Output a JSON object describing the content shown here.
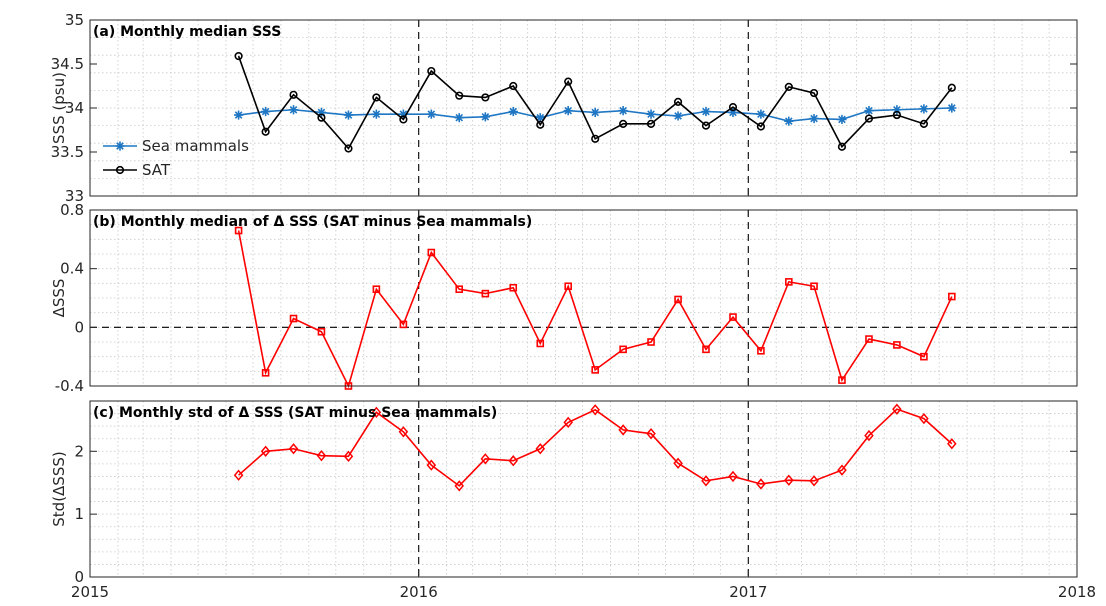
{
  "chart_data": [
    {
      "type": "line",
      "title": "(a) Monthly median SSS",
      "ylabel": "SSS (psu)",
      "ylim": [
        33,
        35
      ],
      "yticks": [
        33,
        33.5,
        34,
        34.5,
        35
      ],
      "ytick_labels": [
        "33",
        "33.5",
        "34",
        "34.5",
        "35"
      ],
      "xlim": [
        "2015-01-01",
        "2018-01-01"
      ],
      "grid": true,
      "legend": "left",
      "x": [
        "2015-06",
        "2015-07",
        "2015-08",
        "2015-09",
        "2015-10",
        "2015-11",
        "2015-12",
        "2016-01",
        "2016-02",
        "2016-03",
        "2016-04",
        "2016-05",
        "2016-06",
        "2016-07",
        "2016-08",
        "2016-09",
        "2016-10",
        "2016-11",
        "2016-12",
        "2017-01",
        "2017-02",
        "2017-03",
        "2017-04",
        "2017-05",
        "2017-06",
        "2017-07",
        "2017-08"
      ],
      "series": [
        {
          "name": "Sea mammals",
          "color": "#1f77c4",
          "marker": "star",
          "values": [
            33.92,
            33.96,
            33.98,
            33.95,
            33.92,
            33.93,
            33.93,
            33.93,
            33.89,
            33.9,
            33.96,
            33.89,
            33.97,
            33.95,
            33.97,
            33.93,
            33.91,
            33.96,
            33.95,
            33.93,
            33.85,
            33.88,
            33.87,
            33.97,
            33.98,
            33.99,
            34.0
          ]
        },
        {
          "name": "SAT",
          "color": "#000000",
          "marker": "circle",
          "values": [
            34.59,
            33.73,
            34.15,
            33.89,
            33.54,
            34.12,
            33.87,
            34.42,
            34.14,
            34.12,
            34.25,
            33.81,
            34.3,
            33.65,
            33.82,
            33.82,
            34.07,
            33.8,
            34.01,
            33.79,
            34.24,
            34.17,
            33.56,
            33.88,
            33.92,
            33.82,
            34.23
          ]
        }
      ]
    },
    {
      "type": "line",
      "title": "(b) Monthly median of Δ SSS (SAT minus Sea mammals)",
      "ylabel": "ΔSSS",
      "ylim": [
        -0.4,
        0.8
      ],
      "yticks": [
        -0.4,
        0,
        0.4,
        0.8
      ],
      "ytick_labels": [
        "-0.4",
        "0",
        "0.4",
        "0.8"
      ],
      "xlim": [
        "2015-01-01",
        "2018-01-01"
      ],
      "grid": true,
      "zero_line": true,
      "x": [
        "2015-06",
        "2015-07",
        "2015-08",
        "2015-09",
        "2015-10",
        "2015-11",
        "2015-12",
        "2016-01",
        "2016-02",
        "2016-03",
        "2016-04",
        "2016-05",
        "2016-06",
        "2016-07",
        "2016-08",
        "2016-09",
        "2016-10",
        "2016-11",
        "2016-12",
        "2017-01",
        "2017-02",
        "2017-03",
        "2017-04",
        "2017-05",
        "2017-06",
        "2017-07",
        "2017-08"
      ],
      "series": [
        {
          "color": "#ff0000",
          "marker": "square",
          "values": [
            0.66,
            -0.31,
            0.06,
            -0.03,
            -0.4,
            0.26,
            0.02,
            0.51,
            0.26,
            0.23,
            0.27,
            -0.11,
            0.28,
            -0.29,
            -0.15,
            -0.1,
            0.19,
            -0.15,
            0.07,
            -0.16,
            0.31,
            0.28,
            -0.36,
            -0.08,
            -0.12,
            -0.2,
            0.21
          ]
        }
      ]
    },
    {
      "type": "line",
      "title": "(c) Monthly std of Δ SSS (SAT minus Sea mammals)",
      "ylabel": "Std(ΔSSS)",
      "ylim": [
        0,
        2.8
      ],
      "yticks": [
        0,
        1,
        2
      ],
      "ytick_labels": [
        "0",
        "1",
        "2"
      ],
      "xlim": [
        "2015-01-01",
        "2018-01-01"
      ],
      "xticks": [
        "2015-01-01",
        "2016-01-01",
        "2017-01-01",
        "2018-01-01"
      ],
      "xtick_labels": [
        "2015",
        "2016",
        "2017",
        "2018"
      ],
      "grid": true,
      "x": [
        "2015-06",
        "2015-07",
        "2015-08",
        "2015-09",
        "2015-10",
        "2015-11",
        "2015-12",
        "2016-01",
        "2016-02",
        "2016-03",
        "2016-04",
        "2016-05",
        "2016-06",
        "2016-07",
        "2016-08",
        "2016-09",
        "2016-10",
        "2016-11",
        "2016-12",
        "2017-01",
        "2017-02",
        "2017-03",
        "2017-04",
        "2017-05",
        "2017-06",
        "2017-07",
        "2017-08"
      ],
      "series": [
        {
          "color": "#ff0000",
          "marker": "diamond",
          "values": [
            1.62,
            2.0,
            2.04,
            1.93,
            1.92,
            2.62,
            2.31,
            1.78,
            1.45,
            1.88,
            1.85,
            2.04,
            2.46,
            2.66,
            2.34,
            2.28,
            1.81,
            1.53,
            1.6,
            1.48,
            1.54,
            1.53,
            1.7,
            2.25,
            2.67,
            2.52,
            2.12
          ]
        }
      ]
    }
  ]
}
